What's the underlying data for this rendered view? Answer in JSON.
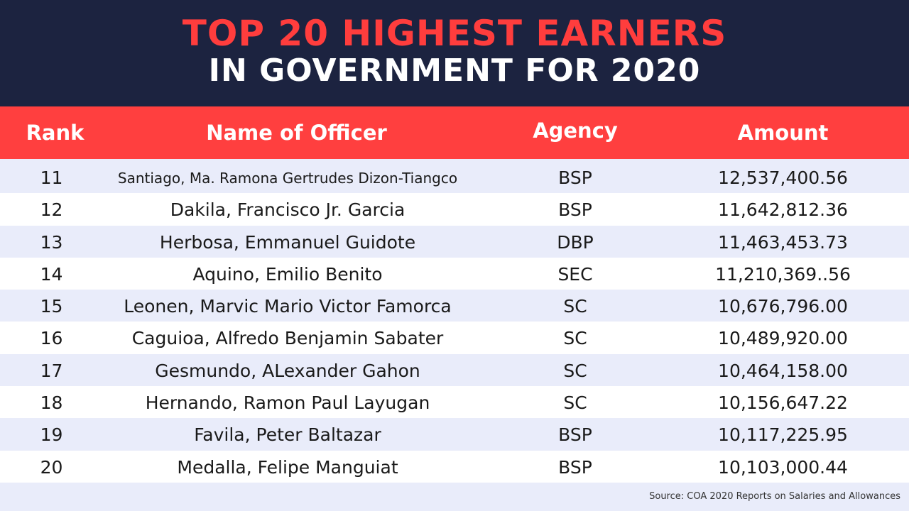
{
  "header": {
    "title_line1": "TOP 20 HIGHEST EARNERS",
    "title_line2": "IN GOVERNMENT FOR 2020"
  },
  "columns": {
    "rank": "Rank",
    "name": "Name of Officer",
    "agency": "Agency",
    "amount": "Amount"
  },
  "chart_data": {
    "type": "table",
    "title": "TOP 20 HIGHEST EARNERS IN GOVERNMENT FOR 2020",
    "columns": [
      "Rank",
      "Name of Officer",
      "Agency",
      "Amount"
    ],
    "rows": [
      {
        "rank": "11",
        "name": "Santiago, Ma. Ramona Gertrudes Dizon-Tiangco",
        "agency": "BSP",
        "amount": "12,537,400.56"
      },
      {
        "rank": "12",
        "name": "Dakila, Francisco Jr. Garcia",
        "agency": "BSP",
        "amount": "11,642,812.36"
      },
      {
        "rank": "13",
        "name": "Herbosa, Emmanuel Guidote",
        "agency": "DBP",
        "amount": "11,463,453.73"
      },
      {
        "rank": "14",
        "name": "Aquino, Emilio Benito",
        "agency": "SEC",
        "amount": "11,210,369..56"
      },
      {
        "rank": "15",
        "name": "Leonen, Marvic Mario Victor Famorca",
        "agency": "SC",
        "amount": "10,676,796.00"
      },
      {
        "rank": "16",
        "name": "Caguioa, Alfredo Benjamin Sabater",
        "agency": "SC",
        "amount": "10,489,920.00"
      },
      {
        "rank": "17",
        "name": "Gesmundo, ALexander Gahon",
        "agency": "SC",
        "amount": "10,464,158.00"
      },
      {
        "rank": "18",
        "name": "Hernando, Ramon Paul Layugan",
        "agency": "SC",
        "amount": "10,156,647.22"
      },
      {
        "rank": "19",
        "name": "Favila, Peter Baltazar",
        "agency": "BSP",
        "amount": "10,117,225.95"
      },
      {
        "rank": "20",
        "name": "Medalla, Felipe Manguiat",
        "agency": "BSP",
        "amount": "10,103,000.44"
      }
    ]
  },
  "source": "Source: COA 2020 Reports on Salaries and Allowances"
}
